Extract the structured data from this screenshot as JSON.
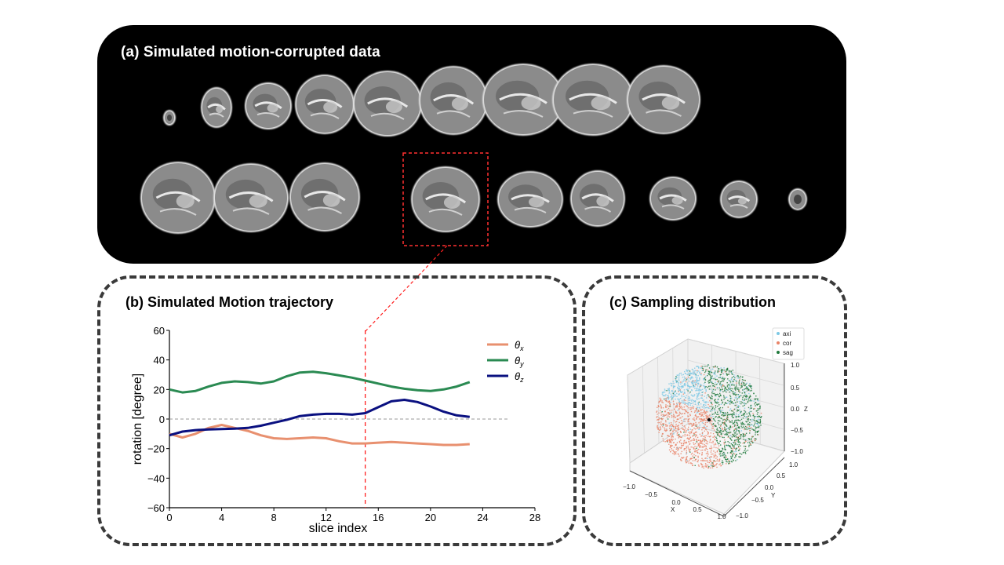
{
  "panel_a": {
    "title": "(a) Simulated motion-corrupted data",
    "row1_slices": 9,
    "row2_slices": 9,
    "highlighted_slice": "row2-4"
  },
  "panel_b": {
    "title": "(b) Simulated Motion trajectory"
  },
  "panel_c": {
    "title": "(c) Sampling distribution"
  },
  "chart_data": [
    {
      "type": "line",
      "title": "",
      "xlabel": "slice index",
      "ylabel": "rotation [degree]",
      "xlim": [
        0,
        28
      ],
      "ylim": [
        -60,
        60
      ],
      "xticks": [
        "0",
        "4",
        "8",
        "12",
        "16",
        "20",
        "24",
        "28"
      ],
      "yticks": [
        "60",
        "40",
        "20",
        "0",
        "−20",
        "−40",
        "−60"
      ],
      "x": [
        0,
        1,
        2,
        3,
        4,
        5,
        6,
        7,
        8,
        9,
        10,
        11,
        12,
        13,
        14,
        15,
        16,
        17,
        18,
        19,
        20,
        21,
        22,
        23
      ],
      "series": [
        {
          "name": "θx",
          "sub": "x",
          "color": "#e8906f",
          "values": [
            -10,
            -12.5,
            -10,
            -6,
            -4,
            -6,
            -8,
            -11,
            -13,
            -13.5,
            -13,
            -12.5,
            -13,
            -15,
            -16.5,
            -16.5,
            -16,
            -15.5,
            -16,
            -16.5,
            -17,
            -17.5,
            -17.5,
            -17
          ]
        },
        {
          "name": "θy",
          "sub": "y",
          "color": "#2a8a52",
          "values": [
            20,
            18,
            19,
            22,
            24.5,
            25.5,
            25,
            24,
            25.5,
            29,
            31.5,
            32,
            31,
            29.5,
            28,
            26,
            24,
            22,
            20.5,
            19.5,
            19,
            20,
            22,
            25
          ]
        },
        {
          "name": "θz",
          "sub": "z",
          "color": "#0a1080",
          "values": [
            -11,
            -8.5,
            -7.5,
            -7,
            -6.8,
            -6.5,
            -6,
            -4.5,
            -2.5,
            -0.5,
            2,
            3,
            3.5,
            3.5,
            3,
            4,
            8,
            12,
            13,
            11.5,
            8.5,
            5,
            2.5,
            1.5
          ]
        }
      ],
      "hline": 0,
      "vline": 15,
      "legend": "top-right"
    },
    {
      "type": "scatter",
      "title": "",
      "xlabel": "X",
      "ylabel": "Y",
      "zlabel": "Z",
      "xticks": [
        "−1.0",
        "−0.5",
        "0.0",
        "0.5",
        "1.0"
      ],
      "yticks": [
        "−1.0",
        "−0.5",
        "0.0",
        "0.5",
        "1.0"
      ],
      "zticks": [
        "1.0",
        "0.5",
        "0.0",
        "−0.5",
        "−1.0"
      ],
      "series": [
        {
          "name": "axi",
          "color": "#7cc8e4"
        },
        {
          "name": "cor",
          "color": "#e98468"
        },
        {
          "name": "sag",
          "color": "#217a3d"
        }
      ],
      "legend": "top-right"
    }
  ]
}
